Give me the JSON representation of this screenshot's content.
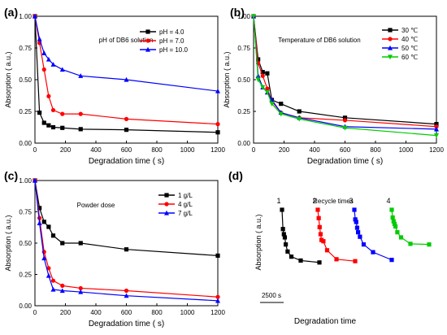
{
  "chart_data": [
    {
      "panel_label": "(a)",
      "type": "line",
      "title": "pH of DB6 solution",
      "xlabel": "Degradation time ( s)",
      "ylabel": "Absorption ( a.u.)",
      "xlim": [
        0,
        1200
      ],
      "ylim": [
        0,
        1.0
      ],
      "xticks": [
        0,
        200,
        400,
        600,
        800,
        1000,
        1200
      ],
      "yticks": [
        0.0,
        0.25,
        0.5,
        0.75,
        1.0
      ],
      "ytick_labels": [
        "0.00",
        "0.25",
        "0.50",
        "0.75",
        "1.00"
      ],
      "legend_position": "top-right",
      "series": [
        {
          "name": "pH = 4.0",
          "color": "#000000",
          "marker": "square",
          "x": [
            0,
            30,
            60,
            90,
            120,
            180,
            300,
            600,
            1200
          ],
          "y": [
            1.0,
            0.24,
            0.16,
            0.14,
            0.125,
            0.12,
            0.11,
            0.105,
            0.085
          ]
        },
        {
          "name": "pH = 7.0",
          "color": "#ff0000",
          "marker": "circle",
          "x": [
            0,
            30,
            60,
            90,
            120,
            180,
            300,
            600,
            1200
          ],
          "y": [
            1.0,
            0.79,
            0.58,
            0.37,
            0.26,
            0.23,
            0.23,
            0.19,
            0.15
          ]
        },
        {
          "name": "pH = 10.0",
          "color": "#0000ff",
          "marker": "triangle",
          "x": [
            0,
            30,
            60,
            90,
            120,
            180,
            300,
            600,
            1200
          ],
          "y": [
            1.0,
            0.82,
            0.71,
            0.66,
            0.62,
            0.58,
            0.53,
            0.5,
            0.41
          ]
        }
      ]
    },
    {
      "panel_label": "(b)",
      "type": "line",
      "title": "Temperature of DB6 solution",
      "xlabel": "Degradation time ( s)",
      "ylabel": "Absorption ( a.u.)",
      "xlim": [
        0,
        1200
      ],
      "ylim": [
        0,
        1.0
      ],
      "xticks": [
        0,
        200,
        400,
        600,
        800,
        1000,
        1200
      ],
      "yticks": [
        0.0,
        0.25,
        0.5,
        0.75,
        1.0
      ],
      "ytick_labels": [
        "0.00",
        "0.25",
        "0.50",
        "0.75",
        "1.00"
      ],
      "legend_position": "top-right",
      "series": [
        {
          "name": "30 ℃",
          "color": "#000000",
          "marker": "square",
          "x": [
            0,
            30,
            60,
            90,
            120,
            180,
            300,
            600,
            1200
          ],
          "y": [
            1.0,
            0.66,
            0.56,
            0.55,
            0.34,
            0.31,
            0.25,
            0.2,
            0.15
          ]
        },
        {
          "name": "40 ℃",
          "color": "#ff0000",
          "marker": "circle",
          "x": [
            0,
            30,
            60,
            90,
            120,
            180,
            300,
            600,
            1200
          ],
          "y": [
            1.0,
            0.63,
            0.53,
            0.43,
            0.33,
            0.24,
            0.2,
            0.18,
            0.13
          ]
        },
        {
          "name": "50 ℃",
          "color": "#0000ff",
          "marker": "triangle",
          "x": [
            0,
            30,
            60,
            90,
            120,
            180,
            300,
            600,
            1200
          ],
          "y": [
            1.0,
            0.53,
            0.44,
            0.4,
            0.34,
            0.24,
            0.2,
            0.13,
            0.11
          ]
        },
        {
          "name": "60 ℃",
          "color": "#00cc00",
          "marker": "triangle-down",
          "x": [
            0,
            30,
            60,
            90,
            120,
            180,
            300,
            600,
            1200
          ],
          "y": [
            1.0,
            0.5,
            0.44,
            0.4,
            0.31,
            0.23,
            0.19,
            0.12,
            0.06
          ]
        }
      ]
    },
    {
      "panel_label": "(c)",
      "type": "line",
      "title": "Powder dose",
      "xlabel": "Degradation time ( s)",
      "ylabel": "Absorption ( a.u.)",
      "xlim": [
        0,
        1200
      ],
      "ylim": [
        0,
        1.0
      ],
      "xticks": [
        0,
        200,
        400,
        600,
        800,
        1000,
        1200
      ],
      "yticks": [
        0.0,
        0.25,
        0.5,
        0.75,
        1.0
      ],
      "ytick_labels": [
        "0.00",
        "0.25",
        "0.50",
        "0.75",
        "1.00"
      ],
      "legend_position": "top-right",
      "series": [
        {
          "name": "1 g/L",
          "color": "#000000",
          "marker": "square",
          "x": [
            0,
            30,
            60,
            90,
            120,
            180,
            300,
            600,
            1200
          ],
          "y": [
            1.0,
            0.78,
            0.67,
            0.63,
            0.56,
            0.5,
            0.5,
            0.45,
            0.4
          ]
        },
        {
          "name": "4 g/L",
          "color": "#ff0000",
          "marker": "circle",
          "x": [
            0,
            30,
            60,
            90,
            120,
            180,
            300,
            600,
            1200
          ],
          "y": [
            1.0,
            0.7,
            0.43,
            0.3,
            0.2,
            0.16,
            0.14,
            0.12,
            0.07
          ]
        },
        {
          "name": "7 g/L",
          "color": "#0000ff",
          "marker": "triangle",
          "x": [
            0,
            30,
            60,
            90,
            120,
            180,
            300,
            600,
            1200
          ],
          "y": [
            1.0,
            0.66,
            0.38,
            0.24,
            0.13,
            0.12,
            0.11,
            0.08,
            0.04
          ]
        }
      ]
    },
    {
      "panel_label": "(d)",
      "type": "line",
      "title": "Recycle times",
      "xlabel": "Degradation time",
      "ylabel": "Absorption ( a.u.)",
      "scale_bar_label": "2500 s",
      "cycles": [
        {
          "label": "1",
          "color": "#000000",
          "x": [
            0,
            30,
            60,
            90,
            120,
            180,
            300,
            600,
            1200
          ],
          "y": [
            1.0,
            0.7,
            0.62,
            0.57,
            0.46,
            0.35,
            0.27,
            0.21,
            0.18
          ]
        },
        {
          "label": "2",
          "color": "#ff0000",
          "x": [
            0,
            30,
            60,
            90,
            120,
            180,
            300,
            600,
            1200
          ],
          "y": [
            1.0,
            0.87,
            0.73,
            0.62,
            0.53,
            0.51,
            0.37,
            0.23,
            0.2
          ]
        },
        {
          "label": "3",
          "color": "#0000ff",
          "x": [
            0,
            30,
            60,
            90,
            120,
            180,
            300,
            600,
            1200
          ],
          "y": [
            1.0,
            0.85,
            0.81,
            0.72,
            0.65,
            0.58,
            0.46,
            0.34,
            0.22
          ]
        },
        {
          "label": "4",
          "color": "#00cc00",
          "x": [
            0,
            30,
            60,
            90,
            120,
            180,
            300,
            600,
            1200
          ],
          "y": [
            1.0,
            0.88,
            0.82,
            0.78,
            0.74,
            0.65,
            0.57,
            0.47,
            0.46
          ]
        }
      ]
    }
  ]
}
